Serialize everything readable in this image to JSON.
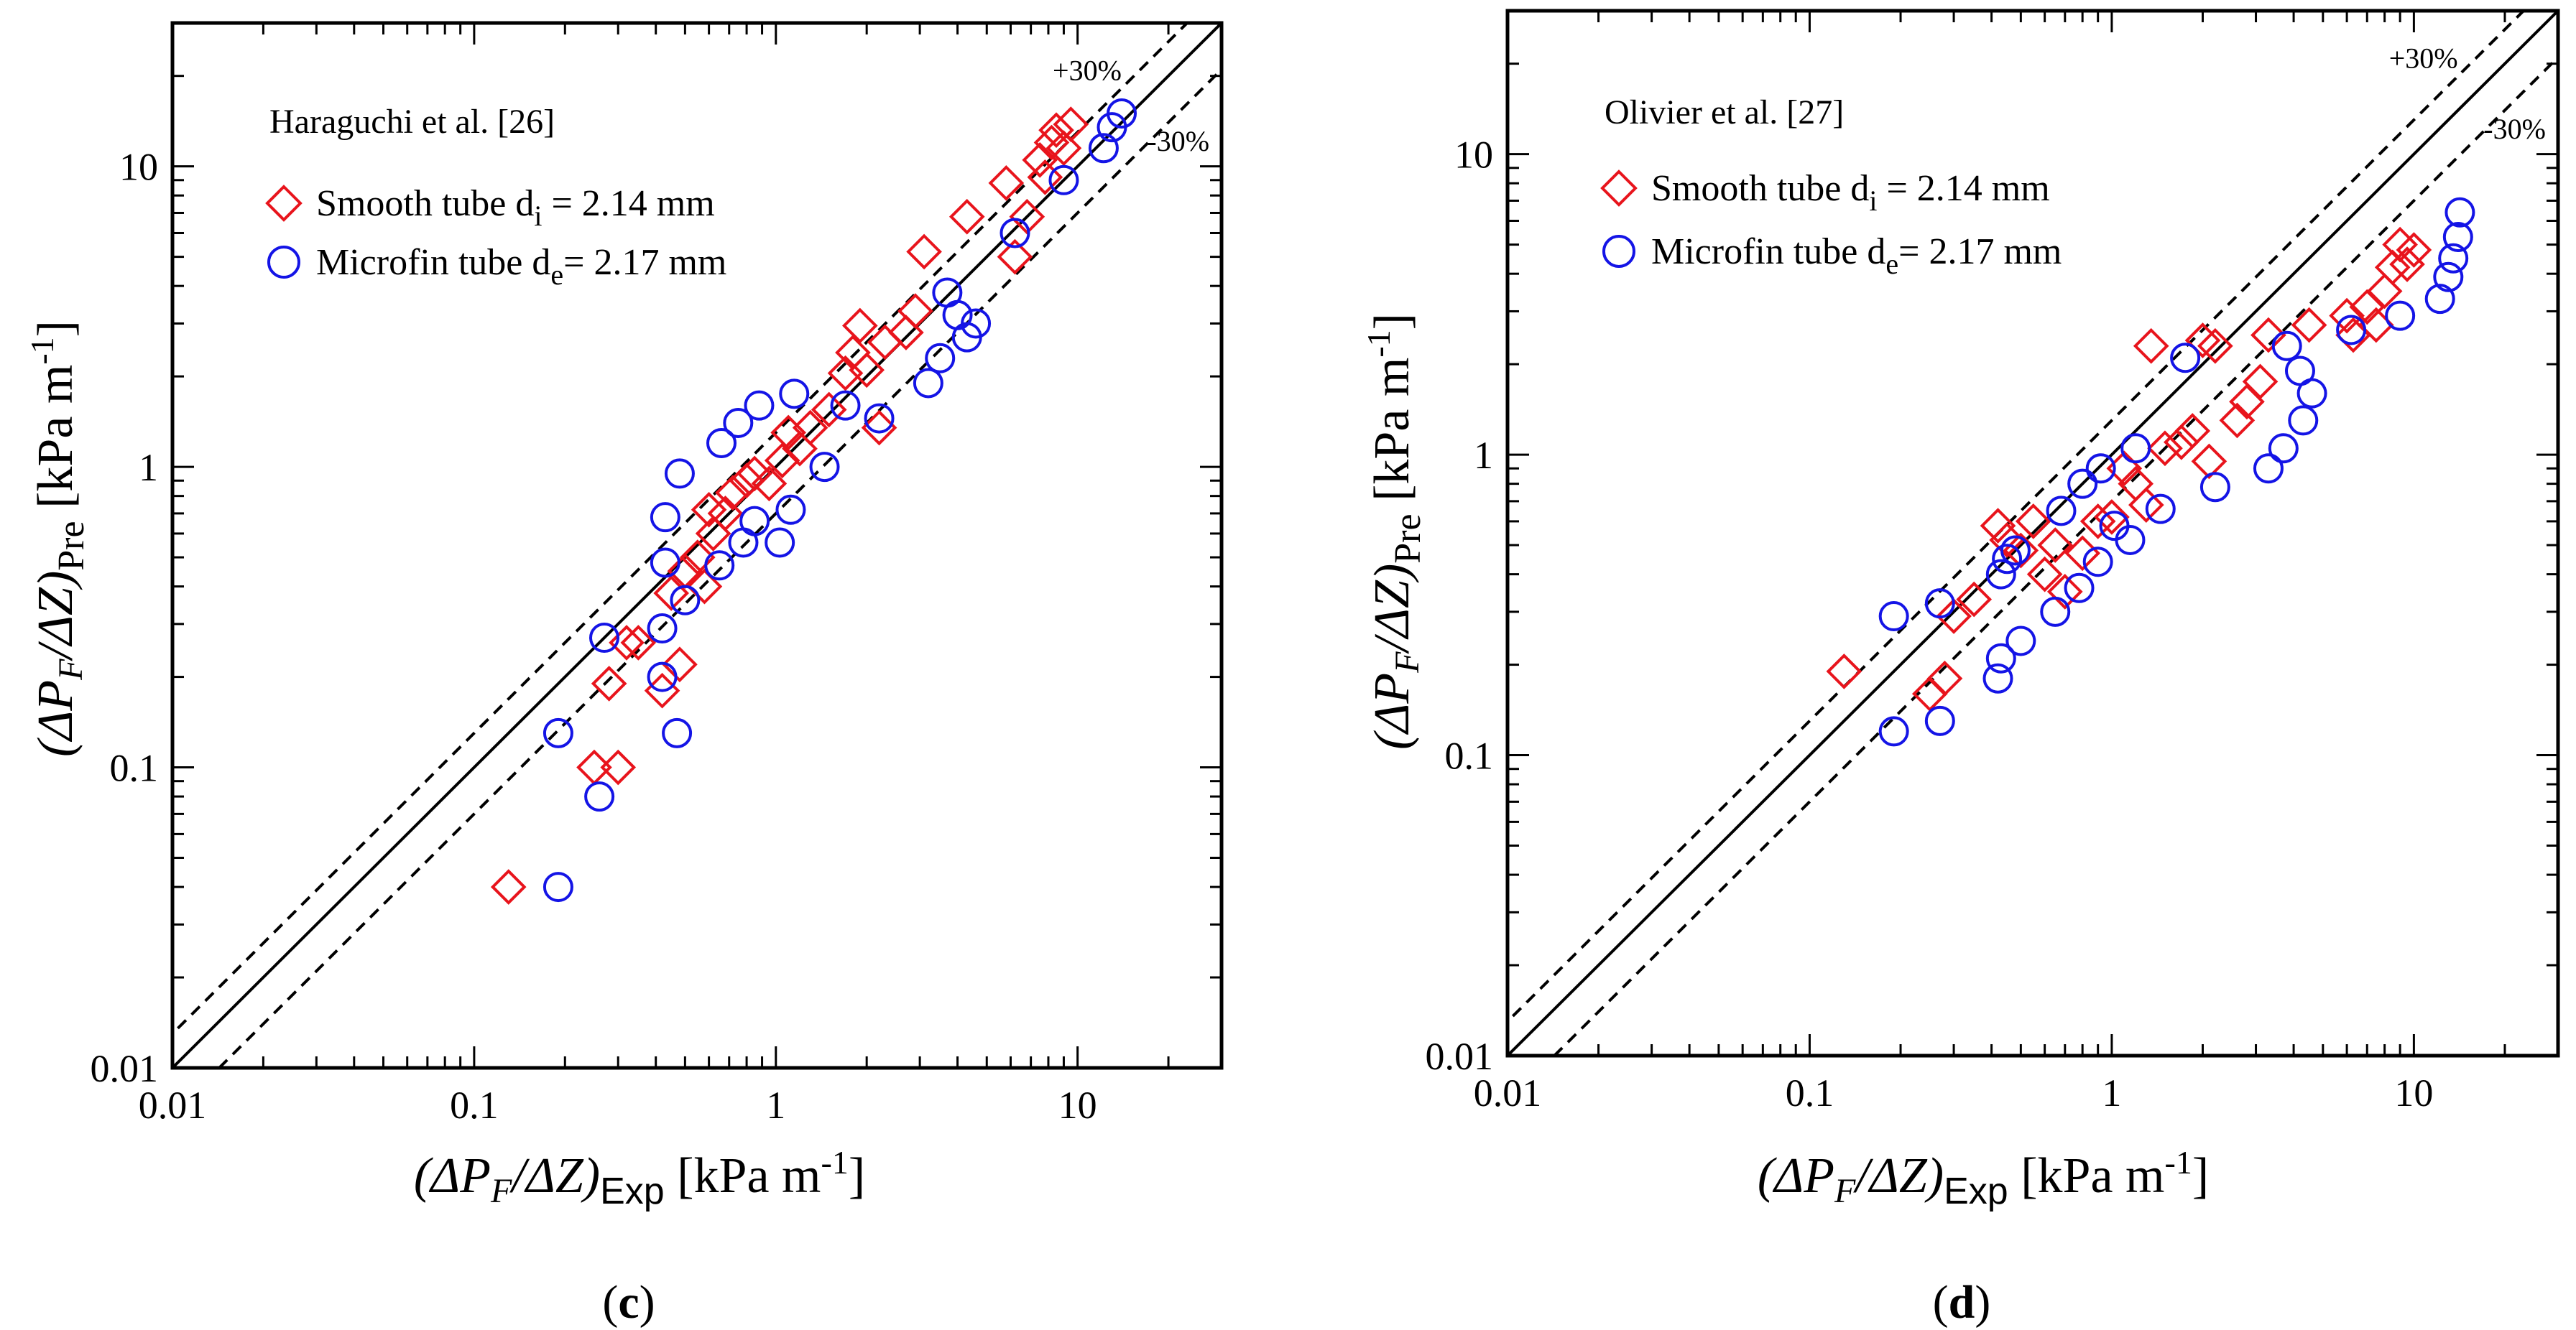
{
  "colors": {
    "smooth": "#e8141c",
    "microfin": "#1414e6",
    "axis": "#000000"
  },
  "chart_data": [
    {
      "type": "scatter",
      "panel_label": "c",
      "source_label": "Haraguchi et al. [26]",
      "xscale": "log",
      "yscale": "log",
      "xlim": [
        0.01,
        30
      ],
      "ylim": [
        0.01,
        30
      ],
      "xticks": [
        0.01,
        0.1,
        1,
        10
      ],
      "xtick_labels": [
        "0.01",
        "0.1",
        "1",
        "10"
      ],
      "yticks": [
        0.01,
        0.1,
        1,
        10
      ],
      "ytick_labels": [
        "0.01",
        "0.1",
        "1",
        "10"
      ],
      "xlabel": {
        "main": "(ΔP",
        "sub1": "F",
        "mid": "/ΔZ)",
        "sub2": "Exp",
        "unit": " [kPa m",
        "sup": "-1",
        "close": "]"
      },
      "ylabel": {
        "main": "(ΔP",
        "sub1": "F",
        "mid": "/ΔZ)",
        "sub2": "Pre",
        "unit": " [kPa m",
        "sup": "-1",
        "close": "]"
      },
      "reference_lines": [
        {
          "factor": 1.0,
          "style": "solid",
          "label": ""
        },
        {
          "factor": 1.3,
          "style": "dashed",
          "label": "+30%"
        },
        {
          "factor": 0.7,
          "style": "dashed",
          "label": "-30%"
        }
      ],
      "legend_placement": "top-left",
      "series": [
        {
          "name": "Smooth tube",
          "legend_main": "Smooth tube d",
          "legend_sub": "i",
          "legend_tail": " = 2.14 mm",
          "marker": "diamond",
          "color_key": "smooth",
          "x": [
            0.13,
            0.25,
            0.3,
            0.28,
            0.32,
            0.35,
            0.42,
            0.45,
            0.48,
            0.5,
            0.55,
            0.58,
            0.6,
            0.62,
            0.68,
            0.72,
            0.8,
            0.85,
            0.95,
            1.05,
            1.1,
            1.2,
            1.3,
            1.5,
            1.7,
            1.8,
            1.9,
            2.0,
            2.2,
            2.3,
            2.7,
            2.9,
            3.1,
            4.3,
            5.8,
            6.2,
            6.8,
            7.5,
            7.8,
            8.2,
            8.5,
            9.0,
            9.5
          ],
          "y": [
            0.04,
            0.1,
            0.1,
            0.19,
            0.26,
            0.26,
            0.18,
            0.38,
            0.22,
            0.45,
            0.5,
            0.4,
            0.72,
            0.6,
            0.7,
            0.82,
            0.9,
            0.95,
            0.88,
            1.05,
            1.3,
            1.15,
            1.35,
            1.55,
            2.05,
            2.4,
            2.95,
            2.1,
            1.35,
            2.6,
            2.8,
            3.3,
            5.2,
            6.8,
            8.8,
            5.0,
            6.8,
            10.5,
            9.2,
            12.0,
            13.2,
            11.5,
            13.8
          ]
        },
        {
          "name": "Microfin tube",
          "legend_main": "Microfin tube d",
          "legend_sub": "e",
          "legend_tail": "= 2.17 mm",
          "marker": "circle",
          "color_key": "microfin",
          "x": [
            0.19,
            0.19,
            0.26,
            0.27,
            0.42,
            0.42,
            0.43,
            0.43,
            0.47,
            0.48,
            0.5,
            0.65,
            0.66,
            0.75,
            0.78,
            0.85,
            0.88,
            1.03,
            1.12,
            1.15,
            1.45,
            1.7,
            2.2,
            3.2,
            3.5,
            3.7,
            4.0,
            4.3,
            4.6,
            6.2,
            9.0,
            12.2,
            13.0,
            14.0
          ],
          "y": [
            0.04,
            0.13,
            0.08,
            0.27,
            0.2,
            0.29,
            0.48,
            0.68,
            0.13,
            0.95,
            0.36,
            0.47,
            1.2,
            1.4,
            0.56,
            0.66,
            1.6,
            0.56,
            0.72,
            1.75,
            1.0,
            1.6,
            1.45,
            1.9,
            2.3,
            3.8,
            3.2,
            2.7,
            3.0,
            6.0,
            9.0,
            11.5,
            13.5,
            15.0
          ]
        }
      ]
    },
    {
      "type": "scatter",
      "panel_label": "d",
      "source_label": "Olivier et al. [27]",
      "xscale": "log",
      "yscale": "log",
      "xlim": [
        0.01,
        30
      ],
      "ylim": [
        0.01,
        30
      ],
      "xticks": [
        0.01,
        0.1,
        1,
        10
      ],
      "xtick_labels": [
        "0.01",
        "0.1",
        "1",
        "10"
      ],
      "yticks": [
        0.01,
        0.1,
        1,
        10
      ],
      "ytick_labels": [
        "0.01",
        "0.1",
        "1",
        "10"
      ],
      "xlabel": {
        "main": "(ΔP",
        "sub1": "F",
        "mid": "/ΔZ)",
        "sub2": "Exp",
        "unit": " [kPa m",
        "sup": "-1",
        "close": "]"
      },
      "ylabel": {
        "main": "(ΔP",
        "sub1": "F",
        "mid": "/ΔZ)",
        "sub2": "Pre",
        "unit": " [kPa m",
        "sup": "-1",
        "close": "]"
      },
      "reference_lines": [
        {
          "factor": 1.0,
          "style": "solid",
          "label": ""
        },
        {
          "factor": 1.3,
          "style": "dashed",
          "label": "+30%"
        },
        {
          "factor": 0.7,
          "style": "dashed",
          "label": "-30%"
        }
      ],
      "legend_placement": "top-left",
      "series": [
        {
          "name": "Smooth tube",
          "legend_main": "Smooth tube d",
          "legend_sub": "i",
          "legend_tail": " = 2.14 mm",
          "marker": "diamond",
          "color_key": "smooth",
          "x": [
            0.13,
            0.25,
            0.28,
            0.3,
            0.35,
            0.42,
            0.45,
            0.5,
            0.55,
            0.6,
            0.65,
            0.7,
            0.8,
            0.9,
            1.0,
            1.1,
            1.2,
            1.3,
            1.35,
            1.5,
            1.7,
            1.85,
            2.0,
            2.1,
            2.2,
            2.6,
            2.8,
            3.1,
            3.3,
            4.5,
            6.0,
            6.3,
            7.0,
            7.5,
            8.0,
            8.5,
            9.0,
            9.5,
            10.0
          ],
          "y": [
            0.19,
            0.16,
            0.18,
            0.29,
            0.33,
            0.58,
            0.52,
            0.48,
            0.6,
            0.4,
            0.5,
            0.35,
            0.47,
            0.6,
            0.62,
            0.9,
            0.8,
            0.68,
            2.3,
            1.05,
            1.1,
            1.2,
            2.4,
            0.95,
            2.3,
            1.3,
            1.5,
            1.75,
            2.5,
            2.7,
            2.9,
            2.5,
            3.1,
            2.7,
            3.5,
            4.2,
            5.0,
            4.3,
            4.8
          ]
        },
        {
          "name": "Microfin tube",
          "legend_main": "Microfin tube d",
          "legend_sub": "e",
          "legend_tail": "= 2.17 mm",
          "marker": "circle",
          "color_key": "microfin",
          "x": [
            0.19,
            0.19,
            0.27,
            0.27,
            0.42,
            0.43,
            0.43,
            0.45,
            0.48,
            0.5,
            0.65,
            0.68,
            0.78,
            0.8,
            0.9,
            0.92,
            1.02,
            1.15,
            1.2,
            1.45,
            1.75,
            2.2,
            3.3,
            3.7,
            3.8,
            4.2,
            4.3,
            4.6,
            6.2,
            9.0,
            12.2,
            13.0,
            13.5,
            14.0,
            14.2
          ],
          "y": [
            0.12,
            0.29,
            0.13,
            0.32,
            0.18,
            0.21,
            0.4,
            0.45,
            0.48,
            0.24,
            0.3,
            0.65,
            0.36,
            0.8,
            0.44,
            0.9,
            0.58,
            0.52,
            1.05,
            0.66,
            2.1,
            0.78,
            0.9,
            1.05,
            2.3,
            1.9,
            1.3,
            1.6,
            2.6,
            2.9,
            3.3,
            3.9,
            4.5,
            5.3,
            6.4
          ]
        }
      ]
    }
  ]
}
